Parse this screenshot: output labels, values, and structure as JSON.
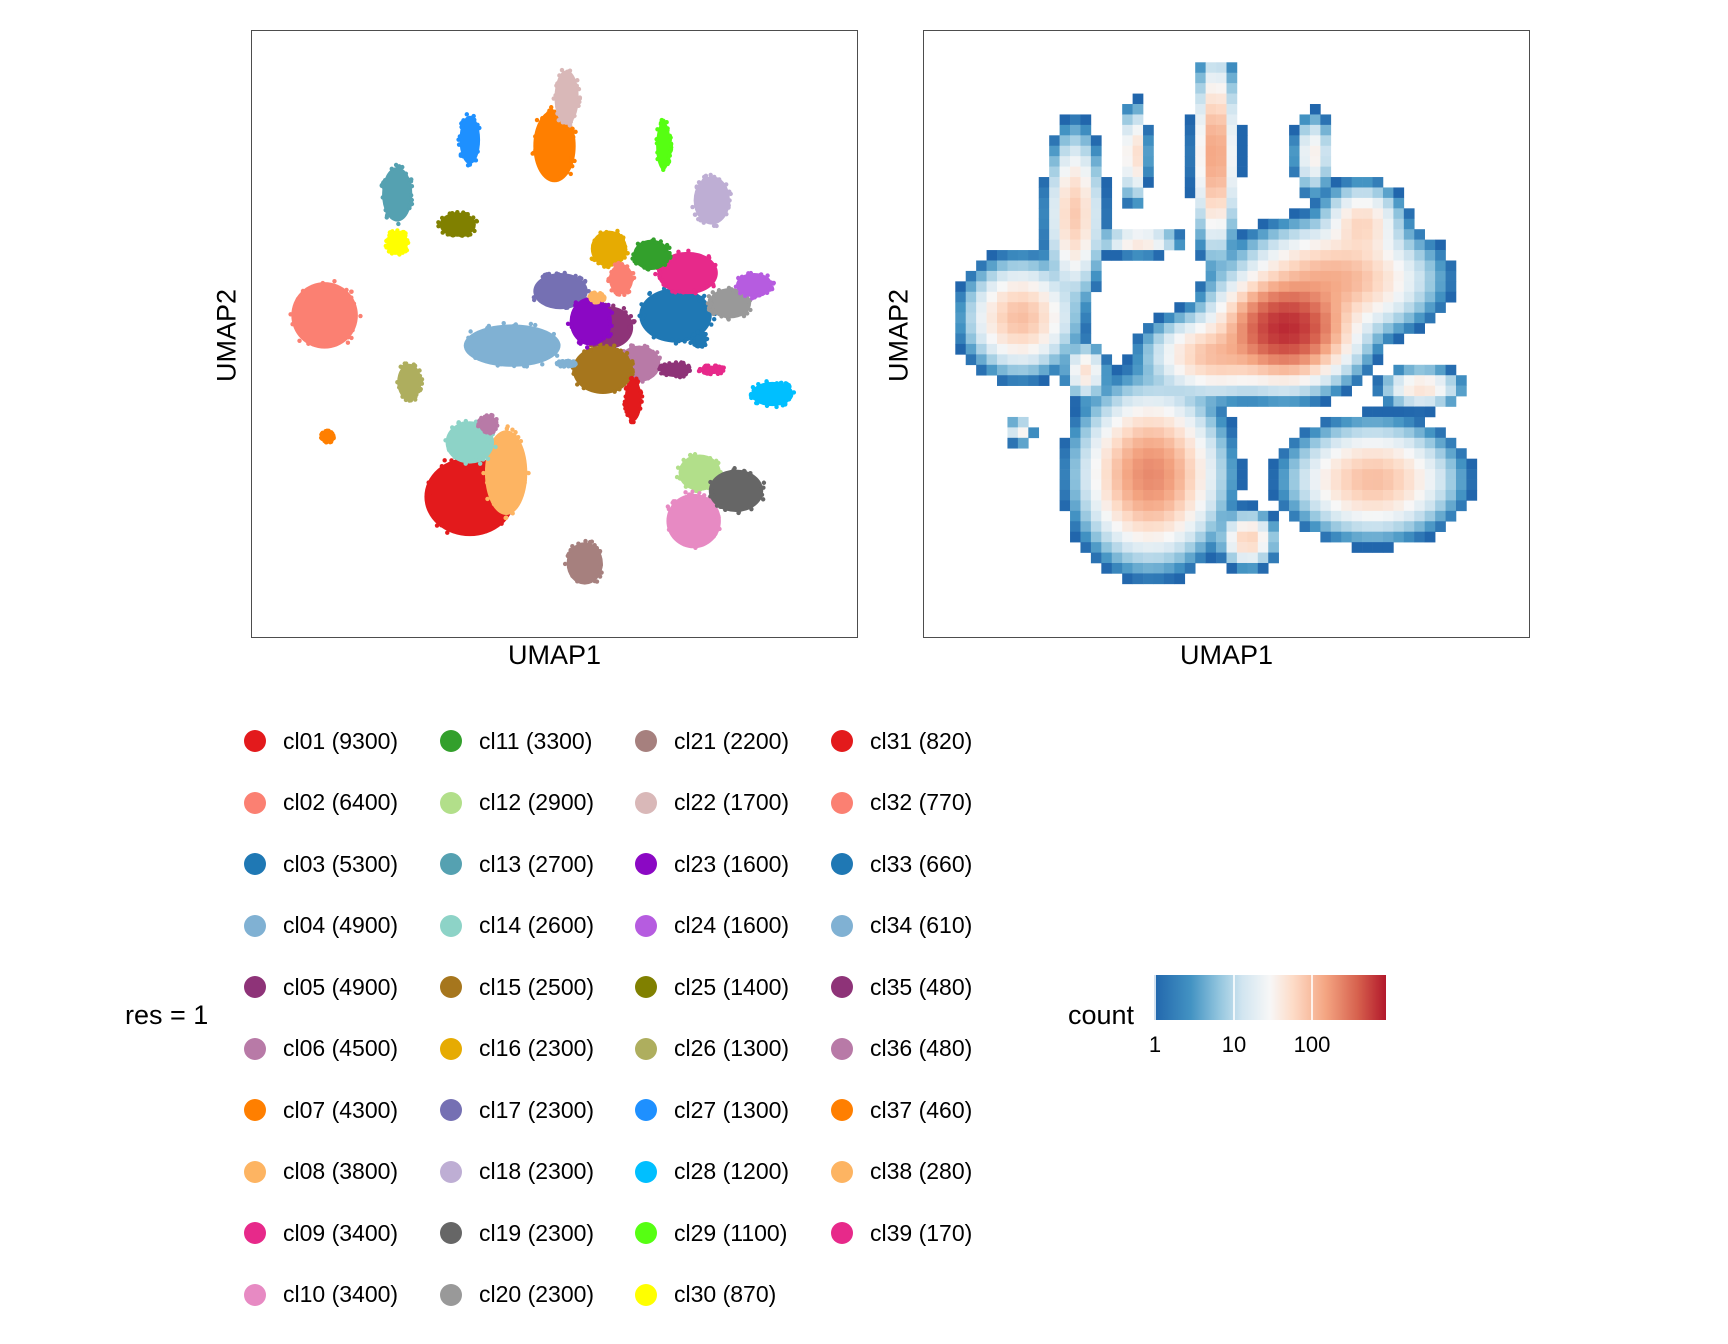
{
  "chart_data": [
    {
      "type": "scatter",
      "title": "",
      "xlabel": "UMAP1",
      "ylabel": "UMAP2",
      "grid": false,
      "color_by": "cluster",
      "clusters": [
        {
          "id": "cl01",
          "cx": 0.36,
          "cy": 0.77,
          "rx": 0.075,
          "ry": 0.065,
          "color": "#E31A1C"
        },
        {
          "id": "cl02",
          "cx": 0.12,
          "cy": 0.47,
          "rx": 0.055,
          "ry": 0.055,
          "color": "#FB8072"
        },
        {
          "id": "cl03",
          "cx": 0.7,
          "cy": 0.47,
          "rx": 0.06,
          "ry": 0.045,
          "color": "#1F78B4"
        },
        {
          "id": "cl04",
          "cx": 0.43,
          "cy": 0.52,
          "rx": 0.08,
          "ry": 0.035,
          "color": "#80B1D3"
        },
        {
          "id": "cl05",
          "cx": 0.59,
          "cy": 0.49,
          "rx": 0.04,
          "ry": 0.035,
          "color": "#8E3378"
        },
        {
          "id": "cl06",
          "cx": 0.64,
          "cy": 0.55,
          "rx": 0.035,
          "ry": 0.03,
          "color": "#B87AA7"
        },
        {
          "id": "cl07",
          "cx": 0.5,
          "cy": 0.19,
          "rx": 0.035,
          "ry": 0.06,
          "color": "#FF7F00"
        },
        {
          "id": "cl08",
          "cx": 0.42,
          "cy": 0.73,
          "rx": 0.035,
          "ry": 0.07,
          "color": "#FDB462"
        },
        {
          "id": "cl09",
          "cx": 0.72,
          "cy": 0.4,
          "rx": 0.05,
          "ry": 0.035,
          "color": "#E7298A"
        },
        {
          "id": "cl10",
          "cx": 0.73,
          "cy": 0.81,
          "rx": 0.045,
          "ry": 0.045,
          "color": "#E78AC3"
        },
        {
          "id": "cl11",
          "cx": 0.66,
          "cy": 0.37,
          "rx": 0.03,
          "ry": 0.025,
          "color": "#33A02C"
        },
        {
          "id": "cl12",
          "cx": 0.74,
          "cy": 0.73,
          "rx": 0.035,
          "ry": 0.03,
          "color": "#B2DF8A"
        },
        {
          "id": "cl13",
          "cx": 0.24,
          "cy": 0.27,
          "rx": 0.025,
          "ry": 0.045,
          "color": "#55A1B1"
        },
        {
          "id": "cl14",
          "cx": 0.36,
          "cy": 0.68,
          "rx": 0.04,
          "ry": 0.035,
          "color": "#8DD3C7"
        },
        {
          "id": "cl15",
          "cx": 0.58,
          "cy": 0.56,
          "rx": 0.05,
          "ry": 0.04,
          "color": "#A6761D"
        },
        {
          "id": "cl16",
          "cx": 0.59,
          "cy": 0.36,
          "rx": 0.03,
          "ry": 0.03,
          "color": "#E6AB02"
        },
        {
          "id": "cl17",
          "cx": 0.51,
          "cy": 0.43,
          "rx": 0.045,
          "ry": 0.03,
          "color": "#7570B3"
        },
        {
          "id": "cl18",
          "cx": 0.76,
          "cy": 0.28,
          "rx": 0.03,
          "ry": 0.04,
          "color": "#BEAED4"
        },
        {
          "id": "cl19",
          "cx": 0.8,
          "cy": 0.76,
          "rx": 0.045,
          "ry": 0.035,
          "color": "#666666"
        },
        {
          "id": "cl20",
          "cx": 0.79,
          "cy": 0.45,
          "rx": 0.035,
          "ry": 0.025,
          "color": "#999999"
        },
        {
          "id": "cl21",
          "cx": 0.55,
          "cy": 0.88,
          "rx": 0.03,
          "ry": 0.035,
          "color": "#A6807E"
        },
        {
          "id": "cl22",
          "cx": 0.52,
          "cy": 0.11,
          "rx": 0.02,
          "ry": 0.045,
          "color": "#D9B8B8"
        },
        {
          "id": "cl23",
          "cx": 0.56,
          "cy": 0.48,
          "rx": 0.035,
          "ry": 0.04,
          "color": "#8B08C4"
        },
        {
          "id": "cl24",
          "cx": 0.83,
          "cy": 0.42,
          "rx": 0.03,
          "ry": 0.02,
          "color": "#B65CE0"
        },
        {
          "id": "cl25",
          "cx": 0.34,
          "cy": 0.32,
          "rx": 0.03,
          "ry": 0.02,
          "color": "#808000"
        },
        {
          "id": "cl26",
          "cx": 0.26,
          "cy": 0.58,
          "rx": 0.02,
          "ry": 0.03,
          "color": "#AEAE5E"
        },
        {
          "id": "cl27",
          "cx": 0.36,
          "cy": 0.18,
          "rx": 0.017,
          "ry": 0.04,
          "color": "#1E90FF"
        },
        {
          "id": "cl28",
          "cx": 0.86,
          "cy": 0.6,
          "rx": 0.035,
          "ry": 0.02,
          "color": "#00BFFF"
        },
        {
          "id": "cl29",
          "cx": 0.68,
          "cy": 0.19,
          "rx": 0.012,
          "ry": 0.04,
          "color": "#56FF12"
        },
        {
          "id": "cl30",
          "cx": 0.24,
          "cy": 0.35,
          "rx": 0.018,
          "ry": 0.02,
          "color": "#FFFF00"
        },
        {
          "id": "cl31",
          "cx": 0.63,
          "cy": 0.61,
          "rx": 0.014,
          "ry": 0.035,
          "color": "#E31A1C"
        },
        {
          "id": "cl32",
          "cx": 0.61,
          "cy": 0.41,
          "rx": 0.02,
          "ry": 0.025,
          "color": "#FB8072"
        },
        {
          "id": "cl33",
          "cx": 0.74,
          "cy": 0.51,
          "rx": 0.012,
          "ry": 0.012,
          "color": "#1F78B4"
        },
        {
          "id": "cl34",
          "cx": 0.52,
          "cy": 0.55,
          "rx": 0.015,
          "ry": 0.005,
          "color": "#80B1D3"
        },
        {
          "id": "cl35",
          "cx": 0.7,
          "cy": 0.56,
          "rx": 0.025,
          "ry": 0.012,
          "color": "#8E3378"
        },
        {
          "id": "cl36",
          "cx": 0.39,
          "cy": 0.65,
          "rx": 0.015,
          "ry": 0.015,
          "color": "#B87AA7"
        },
        {
          "id": "cl37",
          "cx": 0.125,
          "cy": 0.67,
          "rx": 0.01,
          "ry": 0.01,
          "color": "#FF7F00"
        },
        {
          "id": "cl38",
          "cx": 0.57,
          "cy": 0.44,
          "rx": 0.012,
          "ry": 0.008,
          "color": "#FDB462"
        },
        {
          "id": "cl39",
          "cx": 0.76,
          "cy": 0.56,
          "rx": 0.02,
          "ry": 0.007,
          "color": "#E7298A"
        }
      ]
    },
    {
      "type": "heatmap",
      "title": "",
      "xlabel": "UMAP1",
      "ylabel": "UMAP2",
      "grid": false,
      "fill_label": "count",
      "scale": "log10",
      "colorbar_ticks": [
        "1",
        "10",
        "100"
      ],
      "colorbar_range": [
        1,
        1000
      ],
      "colors": [
        "#2166AC",
        "#F7F7F7",
        "#B2182B"
      ],
      "hotspots": [
        {
          "x": 0.61,
          "y": 0.49,
          "sx": 0.05,
          "sy": 0.04,
          "peak": 800
        },
        {
          "x": 0.7,
          "y": 0.4,
          "sx": 0.07,
          "sy": 0.04,
          "peak": 150
        },
        {
          "x": 0.12,
          "y": 0.47,
          "sx": 0.04,
          "sy": 0.04,
          "peak": 120
        },
        {
          "x": 0.36,
          "y": 0.76,
          "sx": 0.05,
          "sy": 0.06,
          "peak": 250
        },
        {
          "x": 0.77,
          "y": 0.77,
          "sx": 0.06,
          "sy": 0.04,
          "peak": 120
        },
        {
          "x": 0.48,
          "y": 0.17,
          "sx": 0.015,
          "sy": 0.07,
          "peak": 200
        },
        {
          "x": 0.22,
          "y": 0.28,
          "sx": 0.02,
          "sy": 0.06,
          "peak": 100
        },
        {
          "x": 0.48,
          "y": 0.54,
          "sx": 0.05,
          "sy": 0.03,
          "peak": 120
        },
        {
          "x": 0.54,
          "y": 0.88,
          "sx": 0.02,
          "sy": 0.02,
          "peak": 90
        },
        {
          "x": 0.75,
          "y": 0.3,
          "sx": 0.03,
          "sy": 0.03,
          "peak": 80
        },
        {
          "x": 0.86,
          "y": 0.6,
          "sx": 0.03,
          "sy": 0.015,
          "peak": 60
        },
        {
          "x": 0.34,
          "y": 0.33,
          "sx": 0.03,
          "sy": 0.01,
          "peak": 60
        },
        {
          "x": 0.33,
          "y": 0.17,
          "sx": 0.01,
          "sy": 0.035,
          "peak": 80
        },
        {
          "x": 0.24,
          "y": 0.57,
          "sx": 0.015,
          "sy": 0.02,
          "peak": 60
        },
        {
          "x": 0.66,
          "y": 0.17,
          "sx": 0.015,
          "sy": 0.03,
          "peak": 40
        },
        {
          "x": 0.12,
          "y": 0.68,
          "sx": 0.01,
          "sy": 0.01,
          "peak": 40
        }
      ]
    }
  ],
  "legend": {
    "title": "res = 1",
    "items": [
      {
        "label": "cl01 (9300)",
        "color": "#E31A1C"
      },
      {
        "label": "cl02 (6400)",
        "color": "#FB8072"
      },
      {
        "label": "cl03 (5300)",
        "color": "#1F78B4"
      },
      {
        "label": "cl04 (4900)",
        "color": "#80B1D3"
      },
      {
        "label": "cl05 (4900)",
        "color": "#8E3378"
      },
      {
        "label": "cl06 (4500)",
        "color": "#B87AA7"
      },
      {
        "label": "cl07 (4300)",
        "color": "#FF7F00"
      },
      {
        "label": "cl08 (3800)",
        "color": "#FDB462"
      },
      {
        "label": "cl09 (3400)",
        "color": "#E7298A"
      },
      {
        "label": "cl10 (3400)",
        "color": "#E78AC3"
      },
      {
        "label": "cl11 (3300)",
        "color": "#33A02C"
      },
      {
        "label": "cl12 (2900)",
        "color": "#B2DF8A"
      },
      {
        "label": "cl13 (2700)",
        "color": "#55A1B1"
      },
      {
        "label": "cl14 (2600)",
        "color": "#8DD3C7"
      },
      {
        "label": "cl15 (2500)",
        "color": "#A6761D"
      },
      {
        "label": "cl16 (2300)",
        "color": "#E6AB02"
      },
      {
        "label": "cl17 (2300)",
        "color": "#7570B3"
      },
      {
        "label": "cl18 (2300)",
        "color": "#BEAED4"
      },
      {
        "label": "cl19 (2300)",
        "color": "#666666"
      },
      {
        "label": "cl20 (2300)",
        "color": "#999999"
      },
      {
        "label": "cl21 (2200)",
        "color": "#A6807E"
      },
      {
        "label": "cl22 (1700)",
        "color": "#D9B8B8"
      },
      {
        "label": "cl23 (1600)",
        "color": "#8B08C4"
      },
      {
        "label": "cl24 (1600)",
        "color": "#B65CE0"
      },
      {
        "label": "cl25 (1400)",
        "color": "#808000"
      },
      {
        "label": "cl26 (1300)",
        "color": "#AEAE5E"
      },
      {
        "label": "cl27 (1300)",
        "color": "#1E90FF"
      },
      {
        "label": "cl28 (1200)",
        "color": "#00BFFF"
      },
      {
        "label": "cl29 (1100)",
        "color": "#56FF12"
      },
      {
        "label": "cl30 (870)",
        "color": "#FFFF00"
      },
      {
        "label": "cl31 (820)",
        "color": "#E31A1C"
      },
      {
        "label": "cl32 (770)",
        "color": "#FB8072"
      },
      {
        "label": "cl33 (660)",
        "color": "#1F78B4"
      },
      {
        "label": "cl34 (610)",
        "color": "#80B1D3"
      },
      {
        "label": "cl35 (480)",
        "color": "#8E3378"
      },
      {
        "label": "cl36 (480)",
        "color": "#B87AA7"
      },
      {
        "label": "cl37 (460)",
        "color": "#FF7F00"
      },
      {
        "label": "cl38 (280)",
        "color": "#FDB462"
      },
      {
        "label": "cl39 (170)",
        "color": "#E7298A"
      }
    ]
  },
  "colorbar": {
    "title": "count",
    "ticks": [
      "1",
      "10",
      "100"
    ]
  }
}
